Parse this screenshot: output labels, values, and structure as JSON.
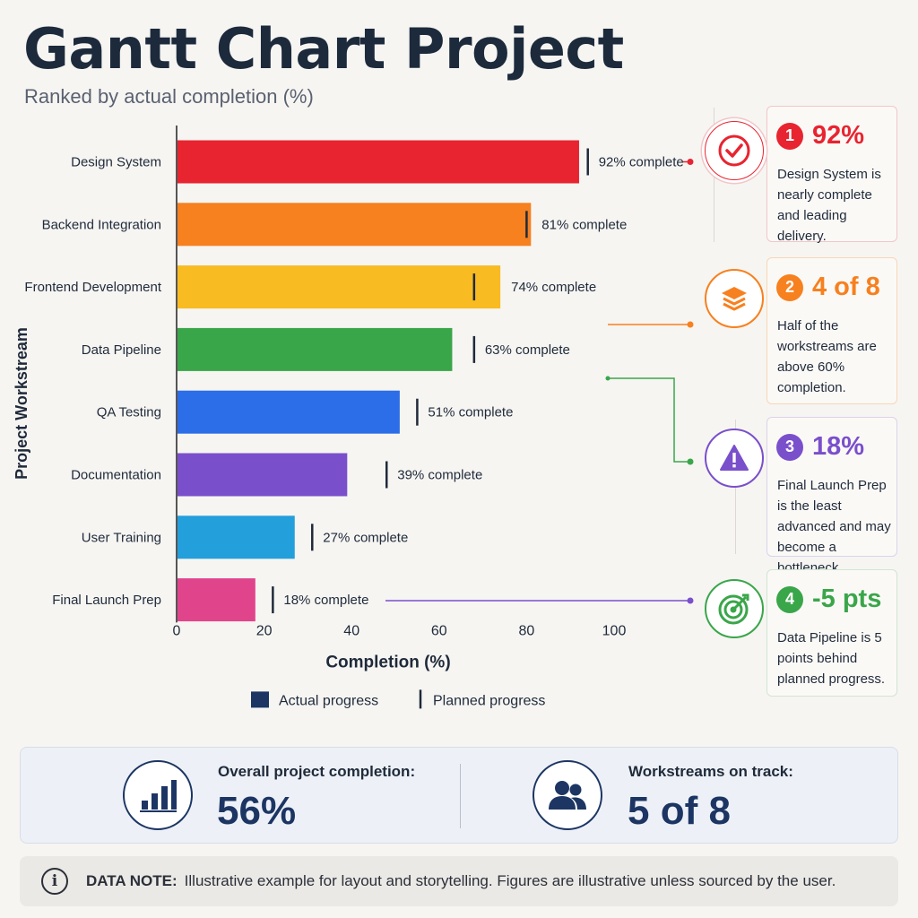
{
  "header": {
    "title": "Gantt Chart Project",
    "subtitle": "Ranked by actual completion (%)"
  },
  "chart_data": {
    "type": "bar",
    "orientation": "horizontal",
    "title": "Gantt Chart Project",
    "subtitle": "Ranked by actual completion (%)",
    "categories": [
      "Design System",
      "Backend Integration",
      "Frontend Development",
      "Data Pipeline",
      "QA Testing",
      "Documentation",
      "User Training",
      "Final Launch Prep"
    ],
    "series": [
      {
        "name": "Actual progress",
        "values": [
          92,
          81,
          74,
          63,
          51,
          39,
          27,
          18
        ]
      },
      {
        "name": "Planned progress",
        "values": [
          94,
          80,
          68,
          68,
          55,
          48,
          31,
          22
        ]
      }
    ],
    "data_labels": [
      "92% complete",
      "81% complete",
      "74% complete",
      "63% complete",
      "51% complete",
      "39% complete",
      "27% complete",
      "18% complete"
    ],
    "colors": [
      "#e82430",
      "#f7801f",
      "#f8bb22",
      "#3aa64a",
      "#2c6de8",
      "#7a4fcb",
      "#239fdc",
      "#e0458c"
    ],
    "xlabel": "Completion (%)",
    "ylabel": "Project Workstream",
    "xlim": [
      0,
      100
    ],
    "xticks": [
      0,
      20,
      40,
      60,
      80,
      100
    ],
    "grid": false,
    "legend": {
      "placement": "bottom",
      "actual_label": "Actual progress",
      "planned_label": "Planned progress",
      "actual_color": "#1c3563"
    }
  },
  "callouts": [
    {
      "num": "1",
      "big": "92%",
      "text": "Design System is nearly complete and leading delivery.",
      "color": "#e82430",
      "icon": "check-circle-icon"
    },
    {
      "num": "2",
      "big": "4 of 8",
      "text": "Half of the workstreams are above 60% completion.",
      "color": "#f7801f",
      "icon": "layers-icon"
    },
    {
      "num": "3",
      "big": "18%",
      "text": "Final Launch Prep is the least advanced and may become a bottleneck.",
      "color": "#7a4fcb",
      "icon": "warning-icon"
    },
    {
      "num": "4",
      "big": "-5 pts",
      "text": "Data Pipeline is 5 points behind planned progress.",
      "color": "#3aa64a",
      "icon": "target-icon"
    }
  ],
  "summary": {
    "overall_label": "Overall project completion:",
    "overall_value": "56%",
    "overall_icon": "bar-chart-icon",
    "ontrack_label": "Workstreams on track:",
    "ontrack_value": "5 of 8",
    "ontrack_icon": "users-icon"
  },
  "note": {
    "label": "DATA NOTE:",
    "text": "Illustrative example for layout and storytelling. Figures are illustrative unless sourced by the user.",
    "icon": "info-icon"
  }
}
